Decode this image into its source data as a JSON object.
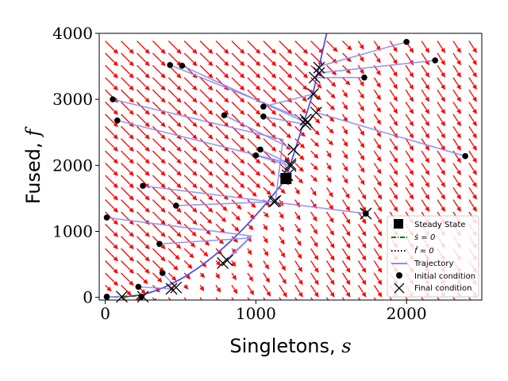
{
  "chart_data": {
    "type": "scatter",
    "xlabel": "Singletons, ",
    "xlabel_var": "s",
    "ylabel": "Fused, ",
    "ylabel_var": "f",
    "xlim": [
      -40,
      2500
    ],
    "ylim": [
      -40,
      4000
    ],
    "xticks": [
      0,
      1000,
      2000
    ],
    "yticks": [
      0,
      1000,
      2000,
      3000,
      4000
    ],
    "grid": false,
    "legend_position": "lower-right",
    "colors": {
      "field": "#ff0000",
      "nullcline_s": "#007700",
      "nullcline_f": "#000000",
      "trajectory": "#8c8cf0",
      "nullcline_curve": "#5050e0",
      "marker": "#000000"
    },
    "legend": [
      {
        "label": "Steady State",
        "marker": "square"
      },
      {
        "label": "ṡ = 0",
        "marker": "dashdot"
      },
      {
        "label": "ḟ = 0",
        "marker": "dotted"
      },
      {
        "label": "Trajectory",
        "marker": "line"
      },
      {
        "label": "Initial condition",
        "marker": "dot"
      },
      {
        "label": "Final condition",
        "marker": "x"
      }
    ],
    "steady_state": {
      "x": 1200,
      "y": 1800
    },
    "trajectories": [
      {
        "initial": [
          2000,
          3870
        ],
        "corner": [
          1420,
          3500
        ],
        "final": [
          1420,
          3480
        ]
      },
      {
        "initial": [
          2190,
          3590
        ],
        "corner": [
          1420,
          3400
        ],
        "final": [
          1420,
          3400
        ]
      },
      {
        "initial": [
          1720,
          3330
        ],
        "corner": [
          1390,
          3330
        ],
        "final": [
          1390,
          3330
        ]
      },
      {
        "initial": [
          430,
          3520
        ],
        "corner": [
          1330,
          2690
        ],
        "final": [
          1330,
          2690
        ]
      },
      {
        "initial": [
          510,
          3510
        ],
        "corner": [
          1340,
          2640
        ],
        "final": [
          1340,
          2650
        ]
      },
      {
        "initial": [
          50,
          3000
        ],
        "corner": [
          1180,
          2390
        ],
        "final": [
          1130,
          1460
        ]
      },
      {
        "initial": [
          80,
          2680
        ],
        "corner": [
          1190,
          2050
        ],
        "final": [
          1210,
          1850
        ]
      },
      {
        "initial": [
          1050,
          2890
        ],
        "corner": [
          1380,
          3080
        ],
        "final": [
          1380,
          3080
        ]
      },
      {
        "initial": [
          1050,
          2740
        ],
        "corner": [
          1330,
          2620
        ],
        "final": [
          1330,
          2620
        ]
      },
      {
        "initial": [
          790,
          2760
        ],
        "corner": [
          1250,
          2240
        ],
        "final": [
          1250,
          2240
        ]
      },
      {
        "initial": [
          1000,
          2150
        ],
        "corner": [
          1230,
          1990
        ],
        "final": [
          1230,
          1990
        ]
      },
      {
        "initial": [
          1030,
          2240
        ],
        "corner": [
          1230,
          2020
        ],
        "final": [
          1230,
          2020
        ]
      },
      {
        "initial": [
          2390,
          2140
        ],
        "corner": [
          1400,
          2800
        ],
        "final": [
          1400,
          2800
        ]
      },
      {
        "initial": [
          250,
          1690
        ],
        "corner": [
          1730,
          1270
        ],
        "final": [
          1730,
          1270
        ]
      },
      {
        "initial": [
          470,
          1390
        ],
        "corner": [
          1120,
          1450
        ],
        "final": [
          1120,
          1450
        ]
      },
      {
        "initial": [
          10,
          1210
        ],
        "corner": [
          970,
          930
        ],
        "final": [
          780,
          520
        ]
      },
      {
        "initial": [
          360,
          810
        ],
        "corner": [
          960,
          900
        ],
        "final": [
          810,
          560
        ]
      },
      {
        "initial": [
          380,
          370
        ],
        "corner": [
          470,
          150
        ],
        "final": [
          470,
          150
        ]
      },
      {
        "initial": [
          220,
          160
        ],
        "corner": [
          440,
          130
        ],
        "final": [
          440,
          130
        ]
      },
      {
        "initial": [
          240,
          10
        ],
        "corner": [
          250,
          10
        ],
        "final": [
          250,
          10
        ]
      },
      {
        "initial": [
          10,
          10
        ],
        "corner": [
          110,
          10
        ],
        "final": [
          110,
          10
        ]
      },
      {
        "initial": [
          1730,
          1270
        ],
        "corner": [
          1730,
          1270
        ],
        "final": [
          1730,
          1270
        ]
      }
    ]
  }
}
